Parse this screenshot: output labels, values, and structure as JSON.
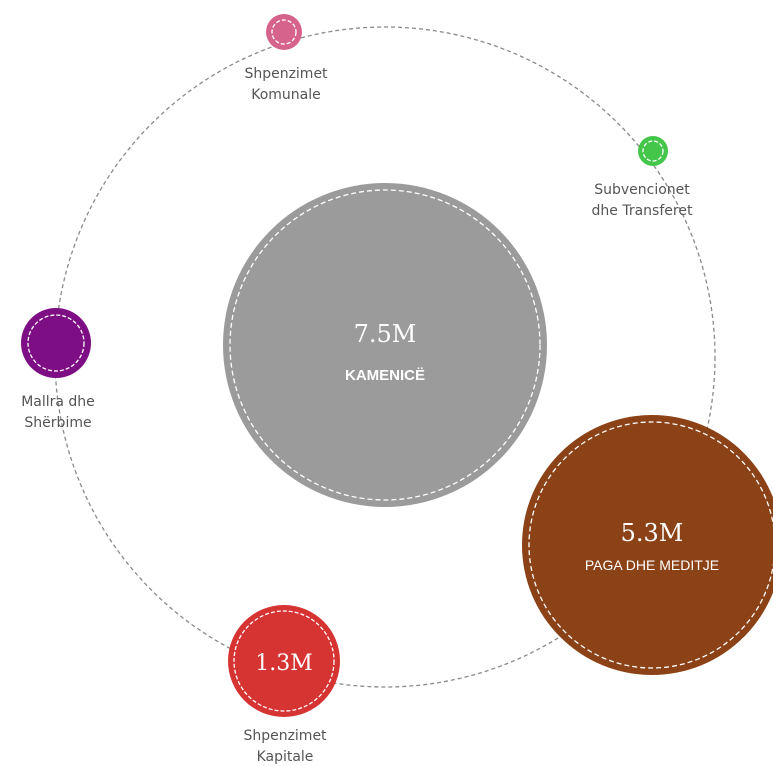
{
  "center": {
    "value": "7.5M",
    "label": "KAMENICË",
    "color": "#9b9b9b"
  },
  "categories": [
    {
      "id": "shpenzimet-komunale",
      "label_lines": [
        "Shpenzimet",
        "Komunale"
      ],
      "value": "",
      "color": "#d6638c"
    },
    {
      "id": "subvencionet-transferet",
      "label_lines": [
        "Subvencionet",
        "dhe Transferet"
      ],
      "value": "",
      "color": "#43c64a"
    },
    {
      "id": "mallra-sherbime",
      "label_lines": [
        "Mallra dhe",
        "Shërbime"
      ],
      "value": "",
      "color": "#7d0e84"
    },
    {
      "id": "paga-meditje",
      "label": "PAGA DHE MEDITJE",
      "value": "5.3M",
      "color": "#8b4216"
    },
    {
      "id": "shpenzimet-kapitale",
      "label_lines": [
        "Shpenzimet",
        "Kapitale"
      ],
      "value": "1.3M",
      "color": "#d63333"
    }
  ]
}
